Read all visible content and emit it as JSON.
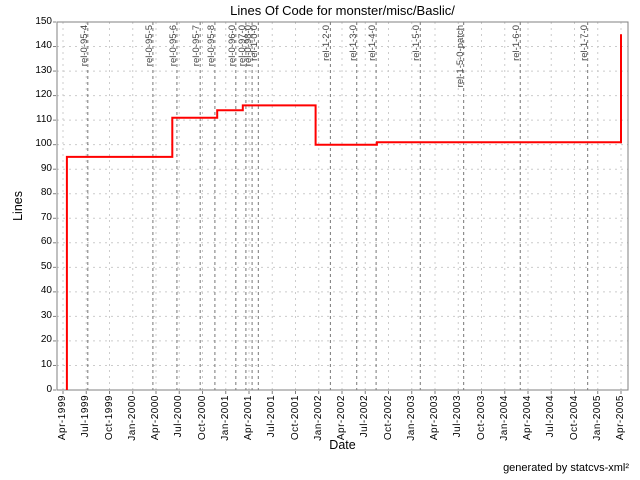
{
  "credit": "generated by statcvs-xml²",
  "chart_data": {
    "type": "line",
    "style": "step",
    "title": "Lines Of Code for monster/misc/Baslic/",
    "xlabel": "Date",
    "ylabel": "Lines",
    "ylim": [
      0,
      150
    ],
    "y_tick_step": 10,
    "grid": true,
    "legend": "none",
    "x_ticks": [
      "Apr-1999",
      "Jul-1999",
      "Oct-1999",
      "Jan-2000",
      "Apr-2000",
      "Jul-2000",
      "Oct-2000",
      "Jan-2001",
      "Apr-2001",
      "Jul-2001",
      "Oct-2001",
      "Jan-2002",
      "Apr-2002",
      "Jul-2002",
      "Oct-2002",
      "Jan-2003",
      "Apr-2003",
      "Jul-2003",
      "Oct-2003",
      "Jan-2004",
      "Apr-2004",
      "Jul-2004",
      "Oct-2004",
      "Jan-2005",
      "Apr-2005"
    ],
    "months_per_tick": 3,
    "series": [
      {
        "name": "Lines Of Code",
        "color": "#ff0000",
        "points_comment": "pairs of [months-after-Apr-1999, lines-of-code]; step line",
        "points": [
          [
            0.5,
            0
          ],
          [
            0.5,
            95
          ],
          [
            14.1,
            95
          ],
          [
            14.1,
            111
          ],
          [
            19.9,
            111
          ],
          [
            19.9,
            114
          ],
          [
            23.2,
            114
          ],
          [
            23.2,
            116
          ],
          [
            32.6,
            116
          ],
          [
            32.6,
            100
          ],
          [
            40.5,
            100
          ],
          [
            40.5,
            101
          ],
          [
            72,
            101
          ],
          [
            72,
            145
          ]
        ]
      }
    ],
    "tags": [
      {
        "label": "rel-0-95-4",
        "month": 3.2
      },
      {
        "label": "rel-0-95-5",
        "month": 11.6
      },
      {
        "label": "rel-0-95-6",
        "month": 14.7
      },
      {
        "label": "rel-0-95-7",
        "month": 17.7
      },
      {
        "label": "rel-0-95-8",
        "month": 19.6
      },
      {
        "label": "rel-0-96-0",
        "month": 22.3
      },
      {
        "label": "rel-0-97-0",
        "month": 23.6
      },
      {
        "label": "rel-0-98-0",
        "month": 24.4
      },
      {
        "label": "rel-1-0-0",
        "month": 25.2
      },
      {
        "label": "rel-1-2-0",
        "month": 34.5
      },
      {
        "label": "rel-1-3-0",
        "month": 37.9
      },
      {
        "label": "rel-1-4-0",
        "month": 40.4
      },
      {
        "label": "rel-1-5-0",
        "month": 46.1
      },
      {
        "label": "rel-1-5-0-patch",
        "month": 51.7
      },
      {
        "label": "rel-1-6-0",
        "month": 59.0
      },
      {
        "label": "rel-1-7-0",
        "month": 67.7
      }
    ],
    "colors": {
      "series": "#ff0000",
      "gridline": "#cccccc",
      "tagline": "#777777",
      "plot_border": "#808080",
      "tag_text": "#444444"
    }
  }
}
